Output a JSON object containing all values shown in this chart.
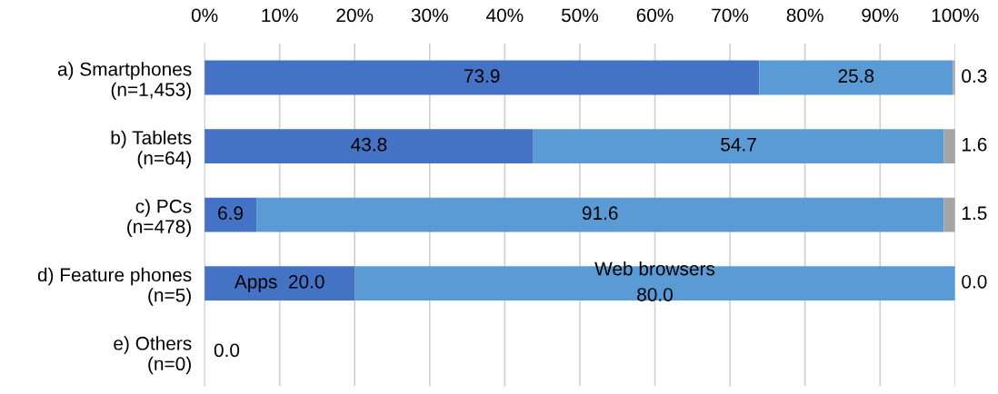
{
  "chart_data": {
    "type": "bar",
    "orientation": "horizontal",
    "stacked": true,
    "categories": [
      "a) Smartphones\n(n=1,453)",
      "b) Tablets\n(n=64)",
      "c) PCs\n(n=478)",
      "d) Feature phones\n(n=5)",
      "e) Others\n(n=0)"
    ],
    "series": [
      {
        "color": "#4472c4",
        "values": [
          73.9,
          43.8,
          6.9,
          20.0,
          0.0
        ],
        "value_labels": [
          "73.9",
          "43.8",
          "6.9",
          "Apps  20.0",
          "0.0"
        ]
      },
      {
        "color": "#5b9bd5",
        "values": [
          25.8,
          54.7,
          91.6,
          80.0,
          null
        ],
        "value_labels": [
          "25.8",
          "54.7",
          "91.6",
          "Web browsers\n80.0",
          null
        ]
      },
      {
        "color": "#a5a5a5",
        "values": [
          0.3,
          1.6,
          1.5,
          0.0,
          null
        ],
        "value_labels": [
          "0.3",
          "1.6",
          "1.5",
          "0.0",
          null
        ]
      }
    ],
    "xlim": [
      0,
      100
    ],
    "xticks": [
      {
        "value": 0,
        "label": "0%"
      },
      {
        "value": 10,
        "label": "10%"
      },
      {
        "value": 20,
        "label": "20%"
      },
      {
        "value": 30,
        "label": "30%"
      },
      {
        "value": 40,
        "label": "40%"
      },
      {
        "value": 50,
        "label": "50%"
      },
      {
        "value": 60,
        "label": "60%"
      },
      {
        "value": 70,
        "label": "70%"
      },
      {
        "value": 80,
        "label": "80%"
      },
      {
        "value": 90,
        "label": "90%"
      },
      {
        "value": 100,
        "label": "100%"
      }
    ],
    "grid": "x",
    "legend": false
  }
}
